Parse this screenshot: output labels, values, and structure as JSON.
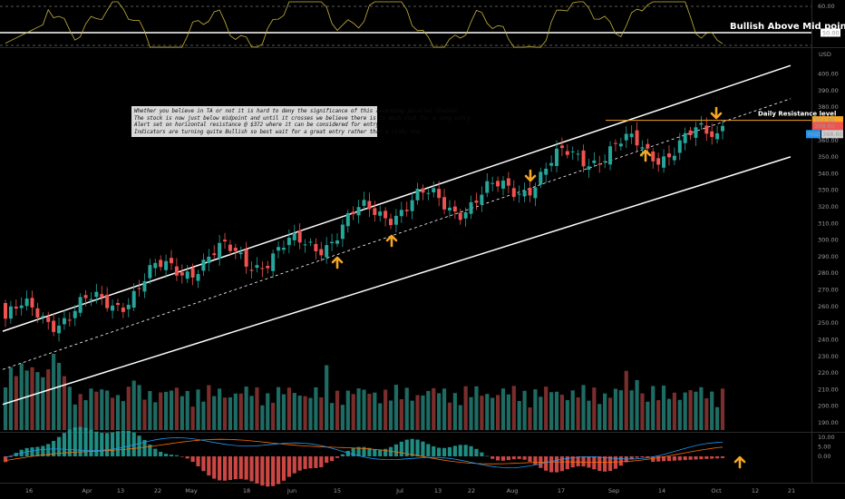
{
  "rsi_panel": {
    "label": "Bullish Above Mid point",
    "levels": [
      60,
      50
    ],
    "value": 50.0,
    "value_label": "50.00",
    "axis_ticks": [
      "60.00"
    ],
    "line_color": "#c8b43a"
  },
  "price_panel": {
    "currency": "USD",
    "resistance_label": "Daily Resistance level",
    "resistance_value": 372,
    "resistance_tag": "372.00",
    "last_tag": "368.60",
    "post_label": "Post",
    "post_value": "368.60",
    "colors": {
      "up": "#26a69a",
      "down": "#ef5350",
      "resistance": "#f5a623",
      "channel": "#ffffff",
      "post_tag": "#2196f3"
    },
    "note_lines": [
      "Whether you believe in TA or not it is hard to deny the significance of this ascending parallel channel.",
      "The stock is now just below midpoint and until it crosses we believe there is to much risk for a long entry.",
      "Alert set on horizontal resistance @ $372 where it can be considered for entry.",
      "Indicators are turning quite Bullish so best wait for a great entry rather than a risky one."
    ],
    "arrow_color": "#f5a623",
    "arrow_icons": [
      "arrow-up-icon",
      "arrow-up-icon",
      "arrow-down-icon",
      "arrow-up-icon",
      "arrow-down-icon"
    ]
  },
  "macd_panel": {
    "axis_ticks": [
      "10.00",
      "5.00",
      "0.00"
    ],
    "macd_color": "#2196f3",
    "signal_color": "#ff6d00",
    "hist_pos_color": "#26a69a",
    "hist_neg_color": "#ef5350",
    "arrow_icon": "arrow-up-icon"
  },
  "x_axis": [
    "16",
    "Apr",
    "13",
    "22",
    "May",
    "18",
    "Jun",
    "15",
    "Jul",
    "13",
    "22",
    "Aug",
    "17",
    "Sep",
    "14",
    "Oct",
    "12",
    "21"
  ],
  "chart_data": {
    "type": "candlestick",
    "y_axis_ticks": [
      400,
      390,
      380,
      370,
      360,
      350,
      340,
      330,
      320,
      310,
      300,
      290,
      280,
      270,
      260,
      250,
      240,
      230,
      220,
      210,
      200,
      190
    ],
    "ylim": [
      185,
      410
    ],
    "resistance": 372,
    "last_price": 368.6,
    "channel": {
      "upper_start": 245,
      "upper_end": 405,
      "mid_start": 222,
      "mid_end": 385,
      "lower_start": 201,
      "lower_end": 350
    },
    "close_start": 248,
    "close_end": 368.6
  }
}
